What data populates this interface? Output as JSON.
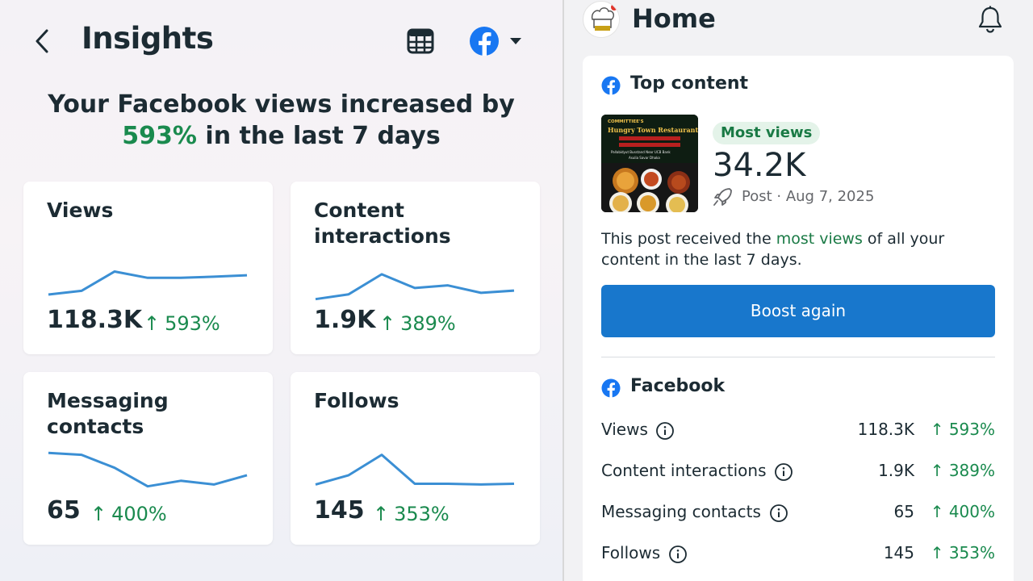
{
  "insights": {
    "title": "Insights",
    "headline_line1": "Your Facebook views increased by",
    "headline_pct": "593%",
    "headline_rest": " in the last 7 days",
    "cards": [
      {
        "title": "Views",
        "value": "118.3K",
        "change": "593%",
        "trend": [
          0,
          0.1,
          0.62,
          0.45,
          0.45,
          0.48,
          0.52
        ]
      },
      {
        "title": "Content interactions",
        "value": "1.9K",
        "change": "389%",
        "trend": [
          0.05,
          0.18,
          0.72,
          0.35,
          0.42,
          0.22,
          0.28
        ]
      },
      {
        "title": "Messaging contacts",
        "value": "65",
        "change": "400%",
        "trend": [
          0.95,
          0.9,
          0.55,
          0.05,
          0.2,
          0.1,
          0.35
        ]
      },
      {
        "title": "Follows",
        "value": "145",
        "change": "353%",
        "trend": [
          0.1,
          0.35,
          0.9,
          0.12,
          0.12,
          0.1,
          0.12
        ]
      }
    ]
  },
  "home": {
    "title": "Home",
    "top_content": {
      "section_title": "Top content",
      "badge": "Most views",
      "value": "34.2K",
      "meta": "Post · Aug 7, 2025",
      "desc_before": "This post received the ",
      "desc_highlight": "most views",
      "desc_after": " of all your content in the last 7 days.",
      "boost_label": "Boost again",
      "thumb_line1": "COMMITTIEE'S",
      "thumb_line2": "Hungry Town Restaurant",
      "thumb_line3": "Pallabidyut Busstand Near UCB Bank",
      "thumb_line4": "Asulia Savar Dhaka"
    },
    "facebook": {
      "section_title": "Facebook",
      "rows": [
        {
          "label": "Views",
          "value": "118.3K",
          "change": "593%"
        },
        {
          "label": "Content interactions",
          "value": "1.9K",
          "change": "389%"
        },
        {
          "label": "Messaging contacts",
          "value": "65",
          "change": "400%"
        },
        {
          "label": "Follows",
          "value": "145",
          "change": "353%"
        }
      ]
    }
  },
  "colors": {
    "accent_green": "#1a8a4e",
    "fb_blue": "#1877f2",
    "boost_blue": "#1877cc",
    "sparkline": "#3b8fd4"
  }
}
